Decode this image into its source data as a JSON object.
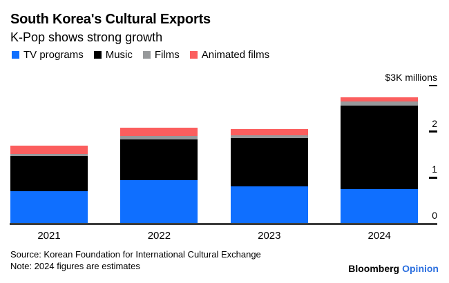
{
  "header": {
    "title": "South Korea's Cultural Exports",
    "subtitle": "K-Pop shows strong growth"
  },
  "chart_data": {
    "type": "bar",
    "stacked": true,
    "grid": false,
    "legend_position": "top",
    "axis_side": "right",
    "unit_label": "$3K millions",
    "categories": [
      "2021",
      "2022",
      "2023",
      "2024"
    ],
    "series": [
      {
        "name": "TV programs",
        "color": "#0f6fff",
        "values": [
          0.71,
          0.94,
          0.81,
          0.75
        ]
      },
      {
        "name": "Music",
        "color": "#000000",
        "values": [
          0.76,
          0.89,
          1.05,
          1.81
        ]
      },
      {
        "name": "Films",
        "color": "#97999b",
        "values": [
          0.05,
          0.07,
          0.06,
          0.09
        ]
      },
      {
        "name": "Animated films",
        "color": "#fb5e5e",
        "values": [
          0.18,
          0.19,
          0.13,
          0.09
        ]
      }
    ],
    "totals": [
      1.7,
      2.09,
      2.05,
      2.74
    ],
    "ylim": [
      0,
      3
    ],
    "yticks": [
      {
        "value": 0,
        "label": "0",
        "dash": false
      },
      {
        "value": 1,
        "label": "1",
        "dash": true
      },
      {
        "value": 2,
        "label": "2",
        "dash": true
      },
      {
        "value": 3,
        "label": "$3K millions",
        "dash": true
      }
    ]
  },
  "footer": {
    "source": "Source: Korean Foundation for International Cultural Exchange",
    "note": "Note: 2024 figures are estimates",
    "brand": {
      "name": "Bloomberg",
      "edition": "Opinion"
    }
  },
  "colors": {
    "tv_blue": "#0f6fff",
    "music_black": "#000000",
    "films_gray": "#97999b",
    "animated_red": "#fb5e5e",
    "brand_blue": "#2b6fdf",
    "axis_line": "#3d3d3d"
  }
}
